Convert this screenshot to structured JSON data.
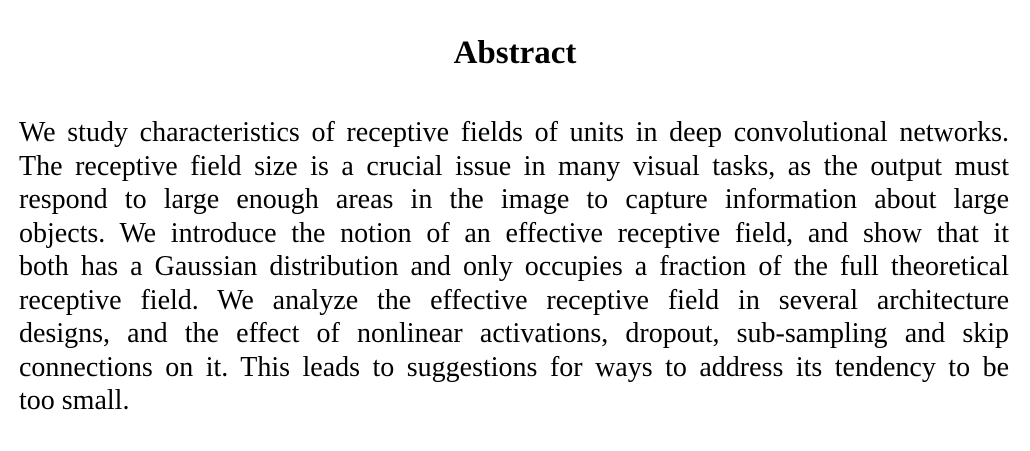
{
  "abstract": {
    "heading": "Abstract",
    "lines": [
      "We study characteristics of receptive fields of units in deep convolutional networks.",
      "The receptive field size is a crucial issue in many visual tasks, as the output must",
      "respond to large enough areas in the image to capture information about large",
      "objects. We introduce the notion of an effective receptive field, and show that it",
      "both has a Gaussian distribution and only occupies a fraction of the full theoretical",
      "receptive field. We analyze the effective receptive field in several architecture",
      "designs, and the effect of nonlinear activations, dropout, sub-sampling and skip",
      "connections on it. This leads to suggestions for ways to address its tendency to be",
      "too small."
    ]
  }
}
